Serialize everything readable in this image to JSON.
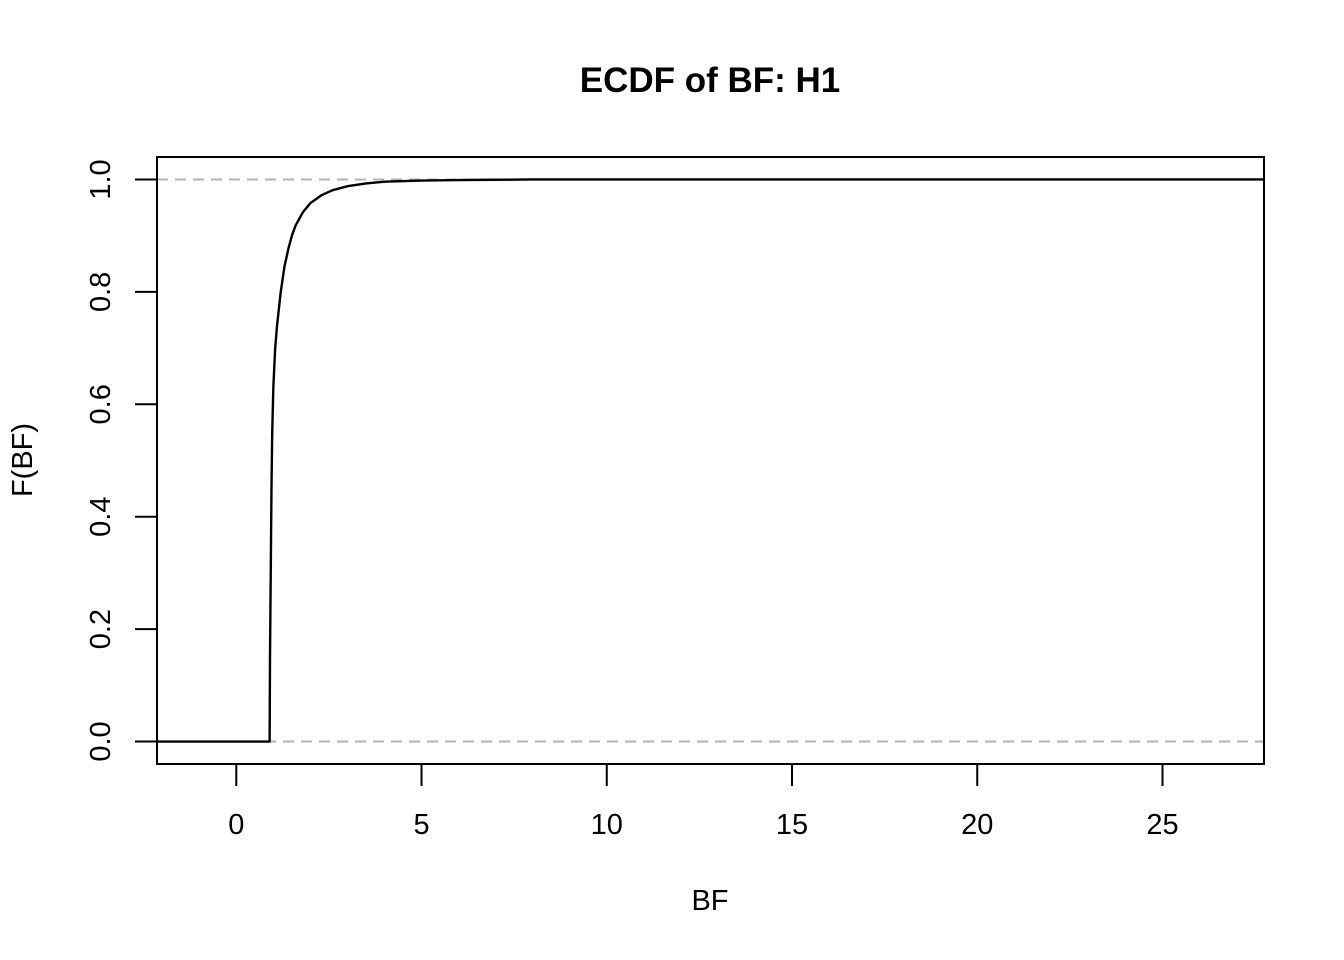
{
  "chart_data": {
    "type": "line",
    "title": "ECDF of BF: H1",
    "xlabel": "BF",
    "ylabel": "F(BF)",
    "xlim": [
      -2.14,
      27.74
    ],
    "ylim": [
      -0.04,
      1.04
    ],
    "x_ticks": [
      0,
      5,
      10,
      15,
      20,
      25
    ],
    "y_ticks": [
      0.0,
      0.2,
      0.4,
      0.6,
      0.8,
      1.0
    ],
    "x_tick_labels": [
      "0",
      "5",
      "10",
      "15",
      "20",
      "25"
    ],
    "y_tick_labels": [
      "0.0",
      "0.2",
      "0.4",
      "0.6",
      "0.8",
      "1.0"
    ],
    "reference_lines": [
      0,
      1
    ],
    "grid": false,
    "series": [
      {
        "x": [
          -2.14,
          0.9,
          0.91,
          0.93,
          0.95,
          0.97,
          1.0,
          1.05,
          1.1,
          1.2,
          1.3,
          1.4,
          1.5,
          1.6,
          1.8,
          2.0,
          2.3,
          2.6,
          3.0,
          3.5,
          4.0,
          5.0,
          6.0,
          7.0,
          8.0,
          10.0,
          15.0,
          20.0,
          27.74
        ],
        "y": [
          0.0,
          0.0,
          0.15,
          0.3,
          0.45,
          0.55,
          0.63,
          0.7,
          0.74,
          0.8,
          0.845,
          0.875,
          0.9,
          0.918,
          0.942,
          0.958,
          0.972,
          0.981,
          0.988,
          0.993,
          0.996,
          0.998,
          0.999,
          0.9995,
          1.0,
          1.0,
          1.0,
          1.0,
          1.0
        ]
      }
    ]
  }
}
